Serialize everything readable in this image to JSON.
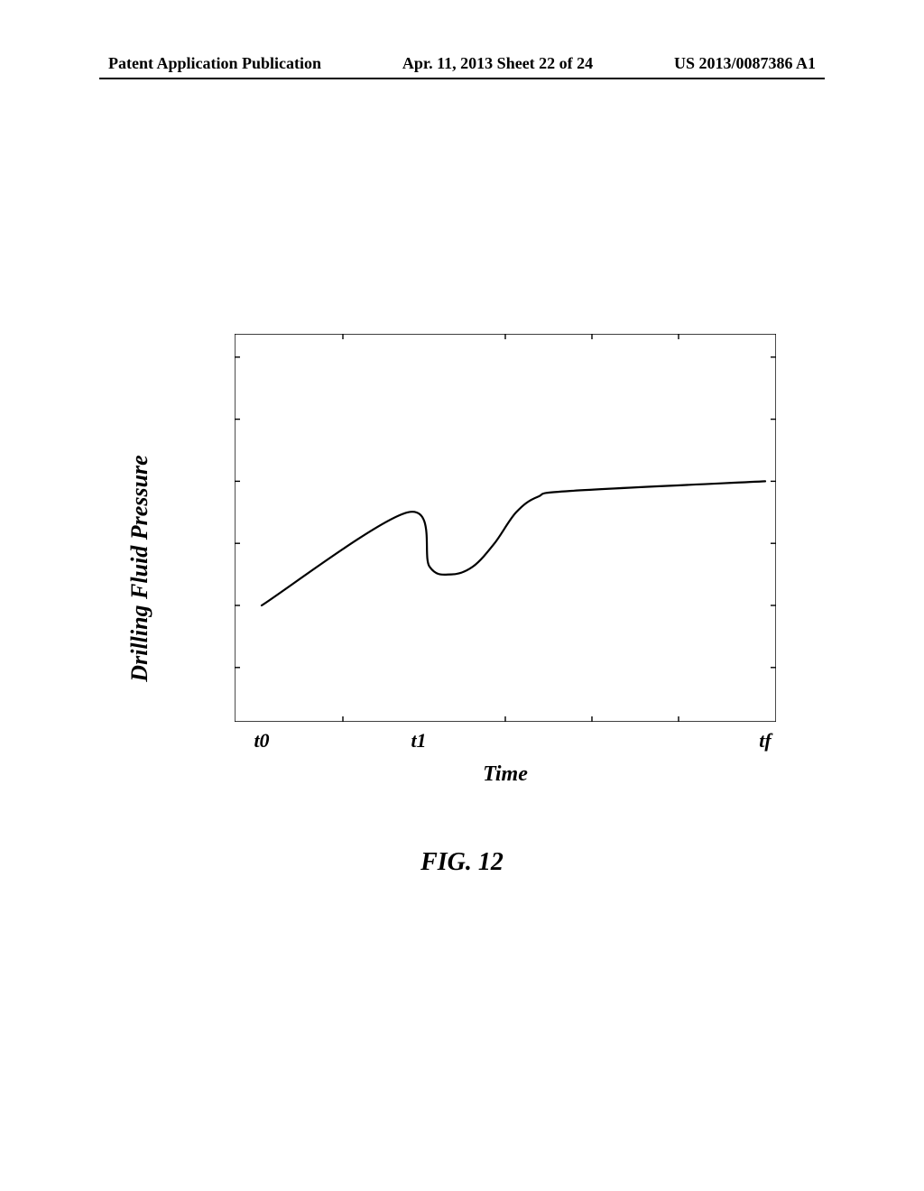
{
  "header": {
    "left": "Patent Application Publication",
    "center": "Apr. 11, 2013  Sheet 22 of 24",
    "right": "US 2013/0087386 A1"
  },
  "figure_caption": "FIG. 12",
  "chart": {
    "type": "line",
    "ylabel": "Drilling Fluid Pressure",
    "xlabel": "Time",
    "xlim": [
      0,
      100
    ],
    "ylim": [
      0,
      100
    ],
    "xticks_major": [
      5,
      34,
      98
    ],
    "xtick_labels": [
      "t0",
      "t1",
      "tf"
    ],
    "xticks_minor": [
      20,
      50,
      66,
      82
    ],
    "yticks_minor": [
      14,
      30,
      46,
      62,
      78,
      94
    ],
    "line_color": "#000000",
    "axis_color": "#000000",
    "line_width": 2.2,
    "axis_width": 1.4,
    "tick_length": 6,
    "curve": [
      [
        5,
        30
      ],
      [
        32,
        54
      ],
      [
        36,
        40
      ],
      [
        40,
        38
      ],
      [
        44,
        40
      ],
      [
        48,
        46
      ],
      [
        52,
        54
      ],
      [
        56,
        58
      ],
      [
        62,
        59.5
      ],
      [
        98,
        62
      ]
    ]
  }
}
